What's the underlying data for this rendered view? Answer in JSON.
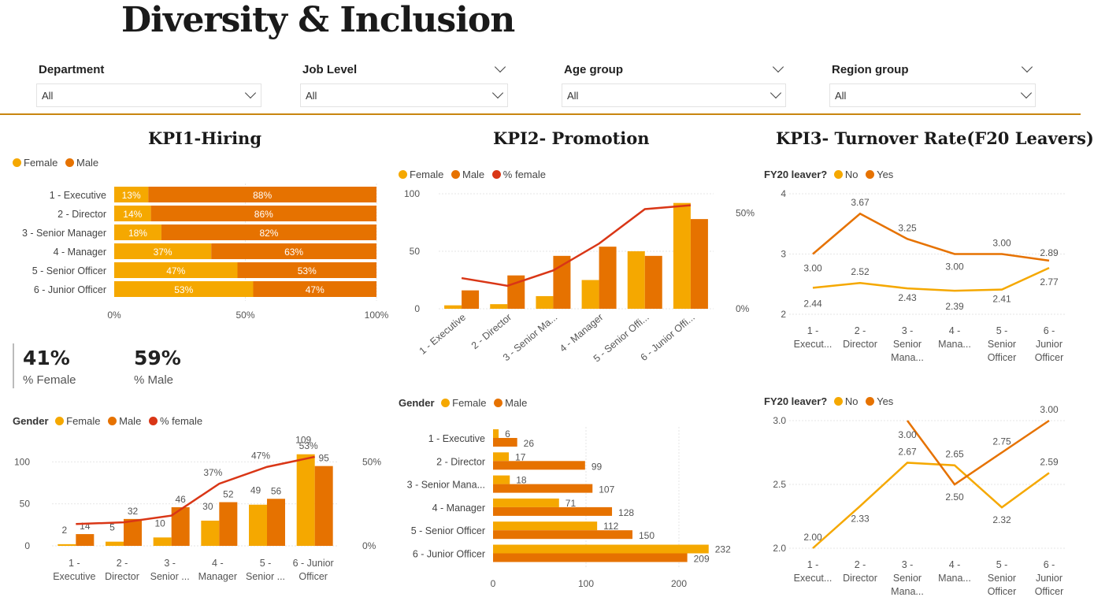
{
  "title": "Diversity & Inclusion",
  "filters": [
    {
      "label": "Department",
      "value": "All"
    },
    {
      "label": "Job Level",
      "value": "All"
    },
    {
      "label": "Age group",
      "value": "All"
    },
    {
      "label": "Region group",
      "value": "All"
    }
  ],
  "colors": {
    "female": "#f5a800",
    "male": "#e67200",
    "pct_female": "#d93616",
    "no": "#f5a800",
    "yes": "#e67200",
    "accent": "#c8860f"
  },
  "kpi1": {
    "title": "KPI1-Hiring",
    "legend": [
      "Female",
      "Male"
    ],
    "cards": [
      {
        "value": "41%",
        "label": "% Female"
      },
      {
        "value": "59%",
        "label": "% Male"
      }
    ],
    "legend2": {
      "title": "Gender",
      "items": [
        "Female",
        "Male",
        "% female"
      ]
    }
  },
  "kpi2": {
    "title": "KPI2- Promotion",
    "legend": [
      "Female",
      "Male",
      "% female"
    ],
    "legend2": {
      "title": "Gender",
      "items": [
        "Female",
        "Male"
      ]
    }
  },
  "kpi3": {
    "title": "KPI3- Turnover Rate(F20 Leavers)",
    "legend": {
      "title": "FY20 leaver?",
      "items": [
        "No",
        "Yes"
      ]
    },
    "legend2": {
      "title": "FY20 leaver?",
      "items": [
        "No",
        "Yes"
      ]
    }
  },
  "chart_data": [
    {
      "id": "hiring_stacked",
      "type": "bar",
      "orientation": "horizontal",
      "stacked": "100%",
      "categories": [
        "1 - Executive",
        "2 - Director",
        "3 - Senior Manager",
        "4 - Manager",
        "5 - Senior Officer",
        "6 - Junior Officer"
      ],
      "series": [
        {
          "name": "Female",
          "values": [
            13,
            14,
            18,
            37,
            47,
            53
          ],
          "labels": [
            "13%",
            "14%",
            "18%",
            "37%",
            "47%",
            "53%"
          ]
        },
        {
          "name": "Male",
          "values": [
            88,
            86,
            82,
            63,
            53,
            47
          ],
          "labels": [
            "88%",
            "86%",
            "82%",
            "63%",
            "53%",
            "47%"
          ]
        }
      ],
      "xticks": [
        "0%",
        "50%",
        "100%"
      ],
      "xlim": [
        0,
        100
      ]
    },
    {
      "id": "hiring_combo",
      "type": "bar",
      "categories": [
        [
          "1 -",
          "Executive"
        ],
        [
          "2 -",
          "Director"
        ],
        [
          "3 -",
          "Senior ..."
        ],
        [
          "4 -",
          "Manager"
        ],
        [
          "5 -",
          "Senior ..."
        ],
        [
          "6 - Junior",
          "Officer"
        ]
      ],
      "series": [
        {
          "name": "Female",
          "values": [
            2,
            5,
            10,
            30,
            49,
            109
          ]
        },
        {
          "name": "Male",
          "values": [
            14,
            32,
            46,
            52,
            56,
            95
          ]
        }
      ],
      "line": {
        "name": "% female",
        "values": [
          13,
          14,
          18,
          37,
          47,
          53
        ],
        "labels": [
          "",
          "",
          "",
          "37%",
          "47%",
          "53%"
        ]
      },
      "yticks": [
        "0",
        "50",
        "100"
      ],
      "ylim": [
        0,
        120
      ],
      "y2ticks": [
        "0%",
        "50%"
      ],
      "y2lim": [
        0,
        60
      ]
    },
    {
      "id": "promotion_combo",
      "type": "bar",
      "categories": [
        "1 - Executive",
        "2 - Director",
        "3 - Senior Ma...",
        "4 - Manager",
        "5 - Senior Offi...",
        "6 - Junior Offi..."
      ],
      "series": [
        {
          "name": "Female",
          "values": [
            3,
            4,
            11,
            25,
            50,
            92
          ]
        },
        {
          "name": "Male",
          "values": [
            16,
            29,
            46,
            54,
            46,
            78
          ]
        }
      ],
      "line": {
        "name": "% female",
        "values": [
          16,
          12,
          20,
          34,
          52,
          54
        ]
      },
      "yticks": [
        "0",
        "50",
        "100"
      ],
      "ylim": [
        0,
        100
      ],
      "y2ticks": [
        "0%",
        "50%"
      ],
      "y2lim": [
        0,
        60
      ]
    },
    {
      "id": "promotion_hbar",
      "type": "bar",
      "orientation": "horizontal",
      "categories": [
        "1 - Executive",
        "2 - Director",
        "3 - Senior Mana...",
        "4 - Manager",
        "5 - Senior Officer",
        "6 - Junior Officer"
      ],
      "series": [
        {
          "name": "Female",
          "values": [
            6,
            17,
            18,
            71,
            112,
            232
          ]
        },
        {
          "name": "Male",
          "values": [
            26,
            99,
            107,
            128,
            150,
            209
          ]
        }
      ],
      "xticks": [
        "0",
        "100",
        "200"
      ],
      "xlim": [
        0,
        240
      ]
    },
    {
      "id": "turnover_line_1",
      "type": "line",
      "categories": [
        [
          "1 -",
          "Execut..."
        ],
        [
          "2 -",
          "Director"
        ],
        [
          "3 -",
          "Senior",
          "Mana..."
        ],
        [
          "4 -",
          "Mana..."
        ],
        [
          "5 -",
          "Senior",
          "Officer"
        ],
        [
          "6 -",
          "Junior",
          "Officer"
        ]
      ],
      "series": [
        {
          "name": "No",
          "values": [
            2.44,
            2.52,
            2.43,
            2.39,
            2.41,
            2.77
          ],
          "labels": [
            "2.44",
            "2.52",
            "2.43",
            "2.39",
            "2.41",
            "2.77"
          ]
        },
        {
          "name": "Yes",
          "values": [
            3.0,
            3.67,
            3.25,
            3.0,
            3.0,
            2.89
          ],
          "labels": [
            "3.00",
            "3.67",
            "3.25",
            "3.00",
            "3.00",
            "2.89"
          ]
        }
      ],
      "yticks": [
        "2",
        "3",
        "4"
      ],
      "ylim": [
        2,
        4
      ]
    },
    {
      "id": "turnover_line_2",
      "type": "line",
      "categories": [
        [
          "1 -",
          "Execut..."
        ],
        [
          "2 -",
          "Director"
        ],
        [
          "3 -",
          "Senior",
          "Mana..."
        ],
        [
          "4 -",
          "Mana..."
        ],
        [
          "5 -",
          "Senior",
          "Officer"
        ],
        [
          "6 -",
          "Junior",
          "Officer"
        ]
      ],
      "series": [
        {
          "name": "No",
          "values": [
            2.0,
            2.33,
            2.67,
            2.65,
            2.32,
            2.59
          ],
          "labels": [
            "2.00",
            "2.33",
            "2.67",
            "2.65",
            "2.32",
            "2.59"
          ]
        },
        {
          "name": "Yes",
          "values": [
            null,
            null,
            3.0,
            2.5,
            2.75,
            3.0
          ],
          "labels": [
            "",
            "",
            "3.00",
            "2.50",
            "2.75",
            "3.00"
          ]
        }
      ],
      "yticks": [
        "2.0",
        "2.5",
        "3.0"
      ],
      "ylim": [
        2.0,
        3.0
      ]
    }
  ]
}
